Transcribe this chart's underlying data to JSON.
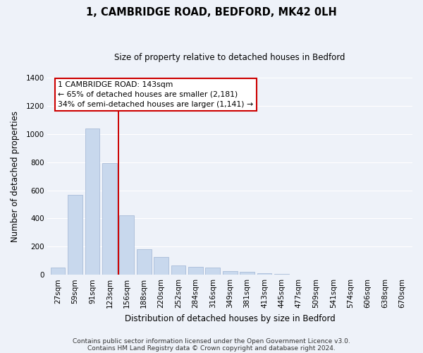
{
  "title": "1, CAMBRIDGE ROAD, BEDFORD, MK42 0LH",
  "subtitle": "Size of property relative to detached houses in Bedford",
  "xlabel": "Distribution of detached houses by size in Bedford",
  "ylabel": "Number of detached properties",
  "bar_labels": [
    "27sqm",
    "59sqm",
    "91sqm",
    "123sqm",
    "156sqm",
    "188sqm",
    "220sqm",
    "252sqm",
    "284sqm",
    "316sqm",
    "349sqm",
    "381sqm",
    "413sqm",
    "445sqm",
    "477sqm",
    "509sqm",
    "541sqm",
    "574sqm",
    "606sqm",
    "638sqm",
    "670sqm"
  ],
  "bar_values": [
    50,
    570,
    1040,
    795,
    420,
    180,
    125,
    65,
    55,
    50,
    25,
    22,
    10,
    5,
    2,
    0,
    0,
    0,
    0,
    0,
    0
  ],
  "bar_color": "#c8d8ed",
  "bar_edge_color": "#a8bcd8",
  "red_line_color": "#cc0000",
  "red_line_x": 3.5,
  "ylim": [
    0,
    1400
  ],
  "yticks": [
    0,
    200,
    400,
    600,
    800,
    1000,
    1200,
    1400
  ],
  "annotation_title": "1 CAMBRIDGE ROAD: 143sqm",
  "annotation_line1": "← 65% of detached houses are smaller (2,181)",
  "annotation_line2": "34% of semi-detached houses are larger (1,141) →",
  "footer_line1": "Contains HM Land Registry data © Crown copyright and database right 2024.",
  "footer_line2": "Contains public sector information licensed under the Open Government Licence v3.0.",
  "background_color": "#eef2f9",
  "plot_bg_color": "#eef2f9",
  "grid_color": "#ffffff",
  "title_fontsize": 10.5,
  "subtitle_fontsize": 8.5,
  "axis_label_fontsize": 8.5,
  "tick_fontsize": 7.5,
  "annotation_fontsize": 7.8,
  "footer_fontsize": 6.5
}
